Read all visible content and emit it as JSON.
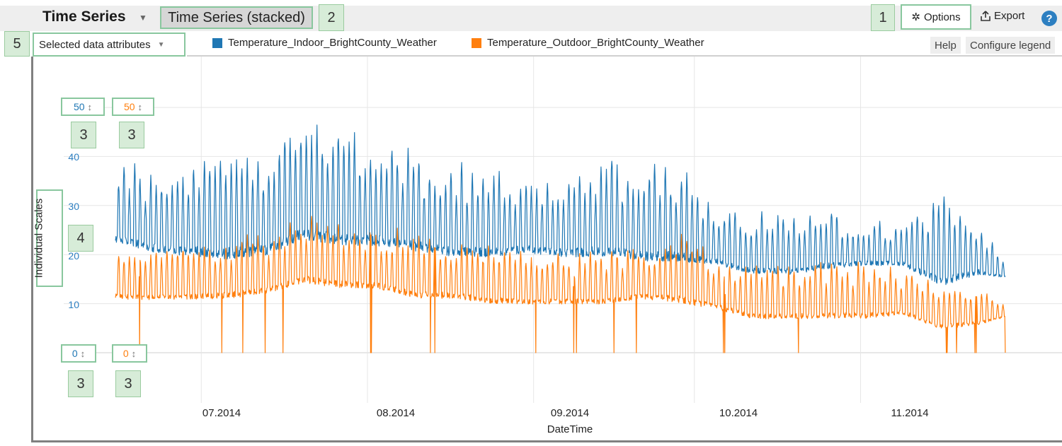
{
  "header": {
    "title": "Time Series",
    "active_tab": "Time Series (stacked)",
    "options_label": "Options",
    "export_label": "Export",
    "help_glyph": "?"
  },
  "toolbar": {
    "attribute_selector": "Selected data attributes",
    "help_link": "Help",
    "configure_legend": "Configure legend"
  },
  "legend": [
    {
      "name": "Temperature_Indoor_BrightCounty_Weather",
      "color": "#1f77b4"
    },
    {
      "name": "Temperature_Outdoor_BrightCounty_Weather",
      "color": "#ff7f0e"
    }
  ],
  "callouts": [
    "1",
    "2",
    "3",
    "4",
    "5"
  ],
  "scales": {
    "indoor_max": "50",
    "outdoor_max": "50",
    "indoor_min": "0",
    "outdoor_min": "0"
  },
  "icons": [
    "gear-icon",
    "export-icon",
    "help-icon",
    "chevron-down-icon",
    "updown-arrow-icon"
  ],
  "chart_data": {
    "type": "line",
    "xlabel": "DateTime",
    "ylabel": "Individual Scales",
    "ylim": [
      0,
      50
    ],
    "yticks": [
      "10",
      "20",
      "30",
      "40"
    ],
    "xticks": [
      "07.2014",
      "08.2014",
      "09.2014",
      "10.2014",
      "11.2014"
    ],
    "x_range": [
      "2014-06-13",
      "2014-11-30"
    ],
    "grid": true,
    "legend_position": "top",
    "series": [
      {
        "name": "Temperature_Indoor_BrightCounty_Weather",
        "color": "#1f77b4",
        "x": [
          "2014-06-15",
          "2014-06-22",
          "2014-06-29",
          "2014-07-06",
          "2014-07-13",
          "2014-07-20",
          "2014-07-27",
          "2014-08-03",
          "2014-08-10",
          "2014-08-17",
          "2014-08-24",
          "2014-08-31",
          "2014-09-07",
          "2014-09-14",
          "2014-09-21",
          "2014-09-28",
          "2014-10-05",
          "2014-10-12",
          "2014-10-19",
          "2014-10-26",
          "2014-11-02",
          "2014-11-09",
          "2014-11-16",
          "2014-11-23",
          "2014-11-28"
        ],
        "min": [
          21,
          19,
          18,
          17,
          18,
          21,
          20,
          20,
          19,
          18,
          18,
          19,
          18,
          18,
          17,
          17,
          17,
          15,
          15,
          16,
          17,
          17,
          12,
          15,
          15
        ],
        "max": [
          39,
          37,
          39,
          42,
          41,
          46,
          44,
          42,
          40,
          38,
          37,
          35,
          36,
          39,
          38,
          37,
          29,
          28,
          27,
          29,
          27,
          26,
          31,
          26,
          19
        ]
      },
      {
        "name": "Temperature_Outdoor_BrightCounty_Weather",
        "color": "#ff7f0e",
        "x": [
          "2014-06-15",
          "2014-06-22",
          "2014-06-29",
          "2014-07-06",
          "2014-07-13",
          "2014-07-20",
          "2014-07-27",
          "2014-08-03",
          "2014-08-10",
          "2014-08-17",
          "2014-08-24",
          "2014-08-31",
          "2014-09-07",
          "2014-09-14",
          "2014-09-21",
          "2014-09-28",
          "2014-10-05",
          "2014-10-12",
          "2014-10-19",
          "2014-10-26",
          "2014-11-02",
          "2014-11-09",
          "2014-11-16",
          "2014-11-23",
          "2014-11-28"
        ],
        "min": [
          10,
          10,
          10,
          10,
          11,
          13,
          12,
          12,
          10,
          10,
          9,
          9,
          9,
          9,
          10,
          9,
          8,
          6,
          6,
          6,
          6,
          7,
          4,
          5,
          7
        ],
        "max": [
          21,
          20,
          21,
          23,
          24,
          28,
          27,
          25,
          24,
          23,
          22,
          20,
          20,
          20,
          21,
          24,
          19,
          17,
          17,
          18,
          18,
          16,
          14,
          13,
          10
        ],
        "dropouts_to": 0
      }
    ]
  }
}
